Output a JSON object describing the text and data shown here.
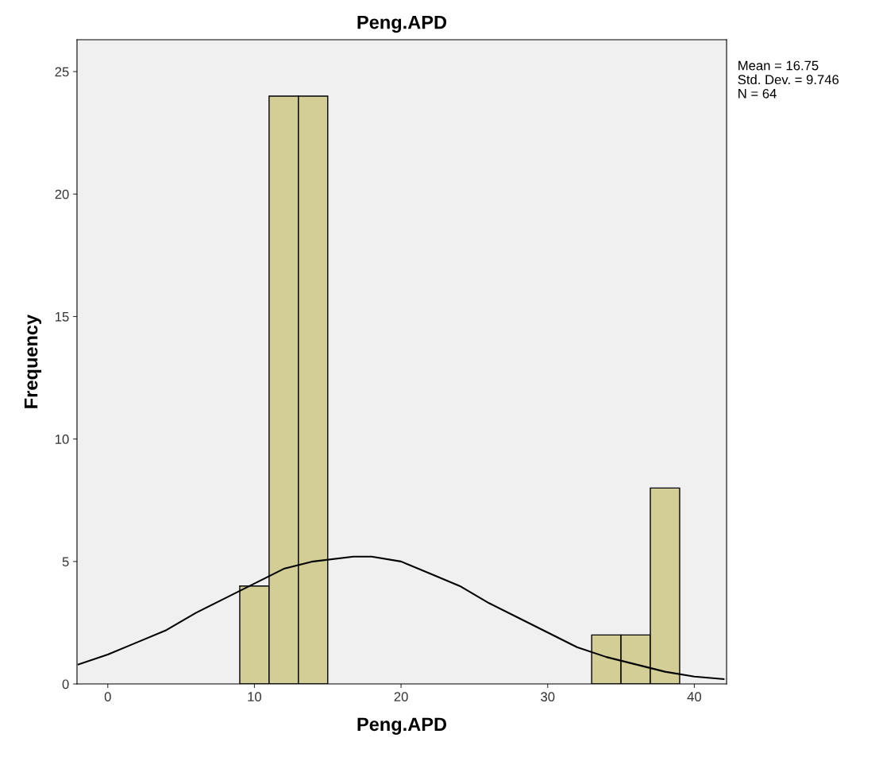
{
  "chart_data": {
    "type": "histogram",
    "title": "Peng.APD",
    "xlabel": "Peng.APD",
    "ylabel": "Frequency",
    "bins": [
      9,
      11,
      13,
      15,
      17,
      19,
      21,
      23,
      25,
      27,
      29,
      31,
      33,
      35,
      37,
      39
    ],
    "values": [
      4,
      24,
      24,
      0,
      0,
      0,
      0,
      0,
      0,
      0,
      0,
      0,
      2,
      2,
      8
    ],
    "color": "#d3ce96",
    "series": [
      {
        "type": "line",
        "color": "#000000",
        "x": [
          -2,
          0,
          2,
          4,
          6,
          8,
          10,
          12,
          14,
          16.75,
          18,
          20,
          22,
          24,
          26,
          28,
          30,
          32,
          34,
          36,
          38,
          40,
          42
        ],
        "values": [
          0.8,
          1.2,
          1.7,
          2.2,
          2.9,
          3.5,
          4.1,
          4.7,
          5.0,
          5.2,
          5.2,
          5.0,
          4.5,
          4.0,
          3.3,
          2.7,
          2.1,
          1.5,
          1.1,
          0.8,
          0.5,
          0.3,
          0.2
        ]
      }
    ],
    "xlim": [
      -2.1,
      42.2
    ],
    "ylim": [
      0,
      26.3
    ],
    "xticks": [
      0,
      10,
      20,
      30,
      40
    ],
    "yticks": [
      0,
      5,
      10,
      15,
      20,
      25
    ],
    "grid": false,
    "legend": false,
    "annotations": [
      "Mean = 16.75",
      "Std. Dev. = 9.746",
      "N = 64"
    ]
  }
}
